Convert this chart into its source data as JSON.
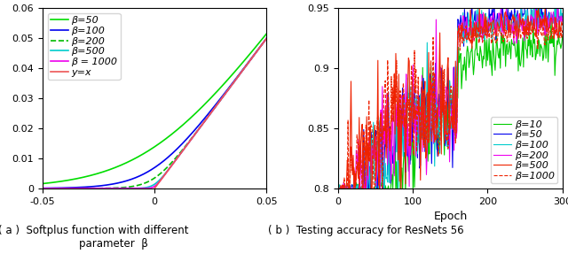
{
  "left_panel": {
    "betas": [
      50,
      100,
      200,
      500,
      1000
    ],
    "x_range": [
      -0.05,
      0.05
    ],
    "y_range": [
      0,
      0.06
    ],
    "xticks": [
      -0.05,
      0,
      0.05
    ],
    "yticks": [
      0,
      0.01,
      0.02,
      0.03,
      0.04,
      0.05,
      0.06
    ],
    "caption": "( a )  Softplus function with different\n            parameter  β",
    "legend_labels": [
      "β=50",
      "β=100",
      "β=200",
      "β=500",
      "β = 1000",
      "y=x"
    ],
    "line_colors": [
      "#00DD00",
      "#0000EE",
      "#00BB00",
      "#00CCCC",
      "#EE00EE",
      "#EE5555"
    ],
    "line_styles": [
      "-",
      "-",
      "--",
      "-",
      "-",
      "-"
    ]
  },
  "right_panel": {
    "x_range": [
      0,
      300
    ],
    "y_range": [
      0.8,
      0.95
    ],
    "yticks": [
      0.8,
      0.85,
      0.9,
      0.95
    ],
    "xticks": [
      0,
      100,
      200,
      300
    ],
    "xlabel": "Epoch",
    "caption": "( b )  Testing accuracy for ResNets 56",
    "legend_labels": [
      "β=10",
      "β=50",
      "β=100",
      "β=200",
      "β=500",
      "β=1000"
    ],
    "line_colors": [
      "#00CC00",
      "#0000EE",
      "#00CCCC",
      "#EE00EE",
      "#EE2200",
      "#EE2200"
    ],
    "line_styles": [
      "-",
      "-",
      "-",
      "-",
      "-",
      "--"
    ],
    "jump_epoch": 160,
    "phase1_noise": 0.022,
    "phase2_noise": 0.004
  }
}
